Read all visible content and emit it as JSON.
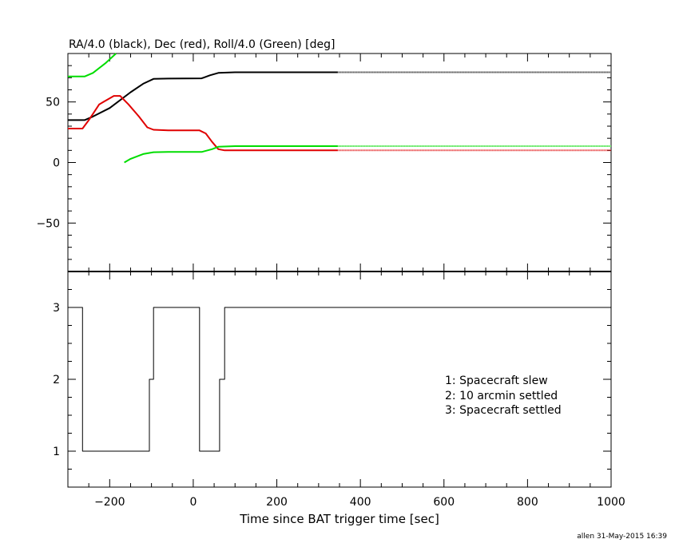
{
  "chart_data": [
    {
      "type": "line",
      "title": "RA/4.0 (black), Dec (red), Roll/4.0 (Green) [deg]",
      "xlim": [
        -300,
        1000
      ],
      "ylim": [
        -90,
        90
      ],
      "yticks": [
        {
          "value": 50,
          "label": "50"
        },
        {
          "value": 0,
          "label": "0"
        },
        {
          "value": -50,
          "label": "−50"
        }
      ],
      "series": [
        {
          "color": "#000000",
          "points": [
            [
              -300,
              35
            ],
            [
              -260,
              35
            ],
            [
              -240,
              38
            ],
            [
              -200,
              45
            ],
            [
              -150,
              58
            ],
            [
              -120,
              65
            ],
            [
              -95,
              69
            ],
            [
              -60,
              69.3
            ],
            [
              20,
              69.5
            ],
            [
              40,
              72
            ],
            [
              60,
              74
            ],
            [
              100,
              74.5
            ],
            [
              345,
              74.5
            ]
          ],
          "dotted_points": [
            [
              345,
              74.5
            ],
            [
              1000,
              74.5
            ]
          ]
        },
        {
          "color": "#e00000",
          "points": [
            [
              -300,
              28
            ],
            [
              -265,
              28
            ],
            [
              -250,
              35
            ],
            [
              -225,
              48
            ],
            [
              -190,
              55
            ],
            [
              -175,
              55
            ],
            [
              -155,
              48
            ],
            [
              -130,
              38
            ],
            [
              -110,
              29
            ],
            [
              -95,
              27
            ],
            [
              -60,
              26.5
            ],
            [
              15,
              26.5
            ],
            [
              30,
              24
            ],
            [
              45,
              17
            ],
            [
              60,
              11
            ],
            [
              75,
              10
            ],
            [
              345,
              10
            ]
          ],
          "dotted_points": [
            [
              345,
              10
            ],
            [
              1000,
              10
            ]
          ]
        },
        {
          "color": "#00dd00",
          "points": [
            [
              -300,
              71
            ],
            [
              -260,
              71
            ],
            [
              -240,
              74
            ],
            [
              -210,
              82
            ],
            [
              -185,
              90
            ]
          ],
          "dotted_points": []
        },
        {
          "color": "#00dd00",
          "points": [
            [
              -165,
              0
            ],
            [
              -150,
              3
            ],
            [
              -120,
              7
            ],
            [
              -95,
              8.5
            ],
            [
              -60,
              8.7
            ],
            [
              20,
              8.7
            ],
            [
              45,
              11
            ],
            [
              60,
              13
            ],
            [
              100,
              13.5
            ],
            [
              345,
              13.5
            ]
          ],
          "dotted_points": [
            [
              345,
              13.5
            ],
            [
              1000,
              13.5
            ]
          ]
        }
      ]
    },
    {
      "type": "line",
      "step": true,
      "xlim": [
        -300,
        1000
      ],
      "ylim": [
        0.5,
        3.5
      ],
      "xlabel": "Time since BAT trigger time [sec]",
      "xticks": [
        {
          "value": -200,
          "label": "−200"
        },
        {
          "value": 0,
          "label": "0"
        },
        {
          "value": 200,
          "label": "200"
        },
        {
          "value": 400,
          "label": "400"
        },
        {
          "value": 600,
          "label": "600"
        },
        {
          "value": 800,
          "label": "800"
        },
        {
          "value": 1000,
          "label": "1000"
        }
      ],
      "yticks": [
        {
          "value": 3,
          "label": "3"
        },
        {
          "value": 2,
          "label": "2"
        },
        {
          "value": 1,
          "label": "1"
        }
      ],
      "series": [
        {
          "color": "#000000",
          "points": [
            [
              -300,
              3
            ],
            [
              -265,
              3
            ],
            [
              -265,
              1
            ],
            [
              -105,
              1
            ],
            [
              -105,
              2
            ],
            [
              -95,
              2
            ],
            [
              -95,
              3
            ],
            [
              15,
              3
            ],
            [
              15,
              1
            ],
            [
              63,
              1
            ],
            [
              63,
              2
            ],
            [
              75,
              2
            ],
            [
              75,
              3
            ],
            [
              1000,
              3
            ]
          ]
        }
      ],
      "legend": [
        "1: Spacecraft slew",
        "2: 10 arcmin settled",
        "3: Spacecraft settled"
      ]
    }
  ],
  "footer": "allen 31-May-2015 16:39"
}
